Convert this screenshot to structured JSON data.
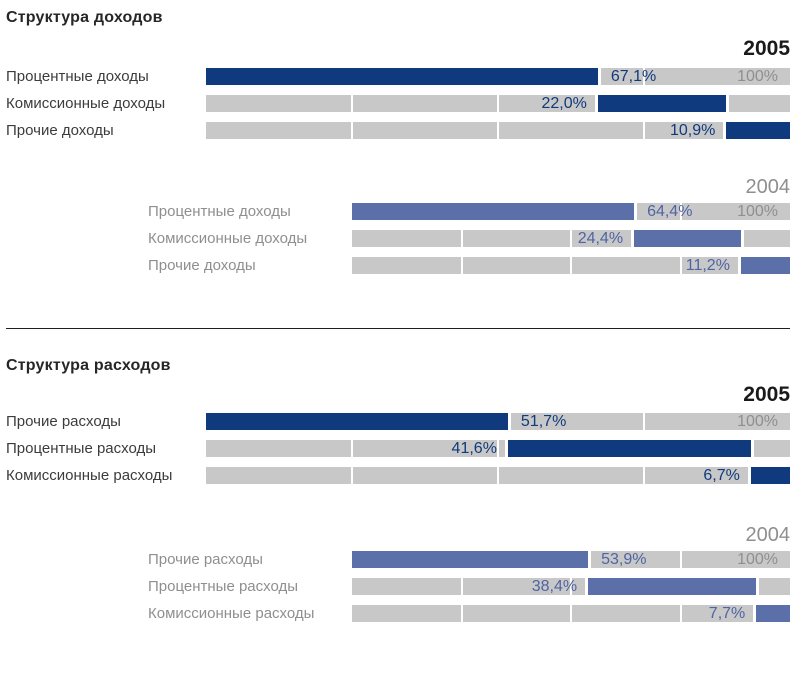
{
  "colors": {
    "navy": "#0f3a7d",
    "navy_text": "#113a7c",
    "slate": "#5b70a8",
    "slate_text": "#4f64a3",
    "track": "#c8c8c8",
    "gray_text": "#8f8f8f",
    "dark_text": "#3c3c3c",
    "heading": "#262626",
    "year_current": "#1a1a1a",
    "divider": "#1f1f1f"
  },
  "chart_data": [
    {
      "type": "bar",
      "title": "Структура доходов",
      "unit": "%",
      "xlim": [
        0,
        100
      ],
      "gridlines_percent": [
        25,
        50,
        75
      ],
      "legend": "none",
      "groups": [
        {
          "year": "2005",
          "period": "current",
          "total_label": "100%",
          "rows": [
            {
              "label": "Процентные доходы",
              "value": 67.1,
              "value_label": "67,1%"
            },
            {
              "label": "Комиссионные доходы",
              "value": 22.0,
              "value_label": "22,0%"
            },
            {
              "label": "Прочие доходы",
              "value": 10.9,
              "value_label": "10,9%"
            }
          ]
        },
        {
          "year": "2004",
          "period": "previous",
          "total_label": "100%",
          "rows": [
            {
              "label": "Процентные доходы",
              "value": 64.4,
              "value_label": "64,4%"
            },
            {
              "label": "Комиссионные доходы",
              "value": 24.4,
              "value_label": "24,4%"
            },
            {
              "label": "Прочие доходы",
              "value": 11.2,
              "value_label": "11,2%"
            }
          ]
        }
      ]
    },
    {
      "type": "bar",
      "title": "Структура расходов",
      "unit": "%",
      "xlim": [
        0,
        100
      ],
      "gridlines_percent": [
        25,
        50,
        75
      ],
      "legend": "none",
      "groups": [
        {
          "year": "2005",
          "period": "current",
          "total_label": "100%",
          "rows": [
            {
              "label": "Прочие расходы",
              "value": 51.7,
              "value_label": "51,7%"
            },
            {
              "label": "Процентные расходы",
              "value": 41.6,
              "value_label": "41,6%"
            },
            {
              "label": "Комиссионные расходы",
              "value": 6.7,
              "value_label": "6,7%"
            }
          ]
        },
        {
          "year": "2004",
          "period": "previous",
          "total_label": "100%",
          "rows": [
            {
              "label": "Прочие расходы",
              "value": 53.9,
              "value_label": "53,9%"
            },
            {
              "label": "Процентные расходы",
              "value": 38.4,
              "value_label": "38,4%"
            },
            {
              "label": "Комиссионные расходы",
              "value": 7.7,
              "value_label": "7,7%"
            }
          ]
        }
      ]
    }
  ]
}
